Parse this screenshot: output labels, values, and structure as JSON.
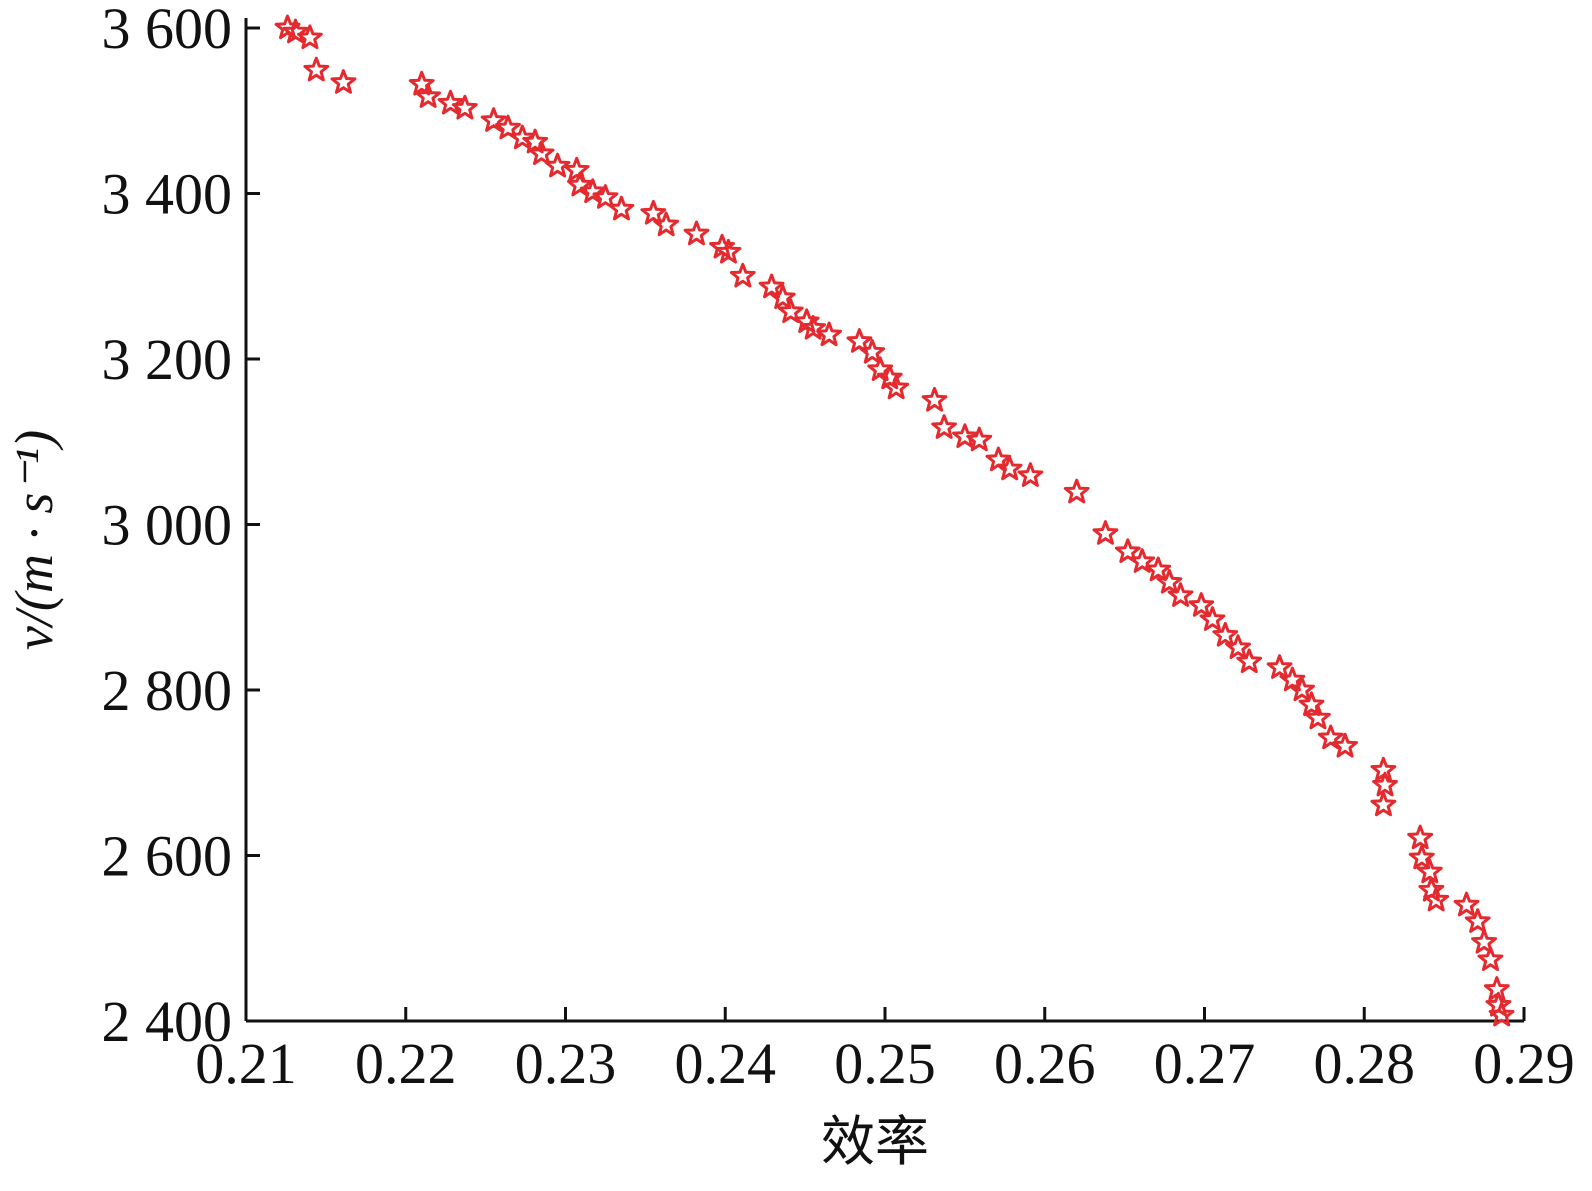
{
  "chart_data": {
    "type": "scatter",
    "x_label": "效率",
    "y_label": "v/(m · s⁻¹)",
    "color": "#e52a2f",
    "marker": "star",
    "xlim": [
      0.21,
      0.29
    ],
    "xticks": [
      0.21,
      0.22,
      0.23,
      0.24,
      0.25,
      0.26,
      0.27,
      0.28,
      0.29
    ],
    "ylim": [
      2400,
      3600
    ],
    "yticks": [
      {
        "value": 2400,
        "label": "2 400"
      },
      {
        "value": 2600,
        "label": "2 600"
      },
      {
        "value": 2800,
        "label": "2 800"
      },
      {
        "value": 3000,
        "label": "3 000"
      },
      {
        "value": 3200,
        "label": "3 200"
      },
      {
        "value": 3400,
        "label": "3 400"
      },
      {
        "value": 3600,
        "label": "3 600"
      }
    ],
    "grid": false,
    "x": [
      0.2126,
      0.2131,
      0.214,
      0.2144,
      0.2161,
      0.221,
      0.2214,
      0.2228,
      0.2237,
      0.2255,
      0.2264,
      0.2273,
      0.2281,
      0.2285,
      0.2295,
      0.2307,
      0.2309,
      0.2317,
      0.2325,
      0.2335,
      0.2355,
      0.2363,
      0.2382,
      0.2398,
      0.2402,
      0.2411,
      0.2429,
      0.2436,
      0.2441,
      0.2451,
      0.2455,
      0.2465,
      0.2484,
      0.2492,
      0.2497,
      0.2503,
      0.2507,
      0.2531,
      0.2537,
      0.255,
      0.2559,
      0.2571,
      0.2578,
      0.2591,
      0.262,
      0.2638,
      0.2652,
      0.2661,
      0.2671,
      0.2678,
      0.2685,
      0.2698,
      0.2705,
      0.2713,
      0.2721,
      0.2728,
      0.2747,
      0.2755,
      0.2761,
      0.2767,
      0.2771,
      0.2779,
      0.2788,
      0.2812,
      0.2813,
      0.2812,
      0.2835,
      0.2836,
      0.2841,
      0.2842,
      0.2845,
      0.2864,
      0.2871,
      0.2875,
      0.2879,
      0.2883,
      0.2884,
      0.2886
    ],
    "values": [
      3600,
      3595,
      3588,
      3549,
      3534,
      3532,
      3517,
      3509,
      3503,
      3488,
      3479,
      3467,
      3462,
      3448,
      3433,
      3428,
      3410,
      3402,
      3395,
      3381,
      3376,
      3362,
      3351,
      3335,
      3329,
      3300,
      3287,
      3274,
      3257,
      3245,
      3237,
      3229,
      3221,
      3208,
      3187,
      3177,
      3165,
      3150,
      3117,
      3106,
      3102,
      3078,
      3067,
      3059,
      3039,
      2989,
      2967,
      2955,
      2945,
      2930,
      2914,
      2902,
      2885,
      2866,
      2851,
      2834,
      2827,
      2812,
      2800,
      2782,
      2766,
      2742,
      2732,
      2703,
      2685,
      2661,
      2621,
      2597,
      2580,
      2558,
      2546,
      2540,
      2520,
      2495,
      2474,
      2438,
      2419,
      2407
    ]
  }
}
